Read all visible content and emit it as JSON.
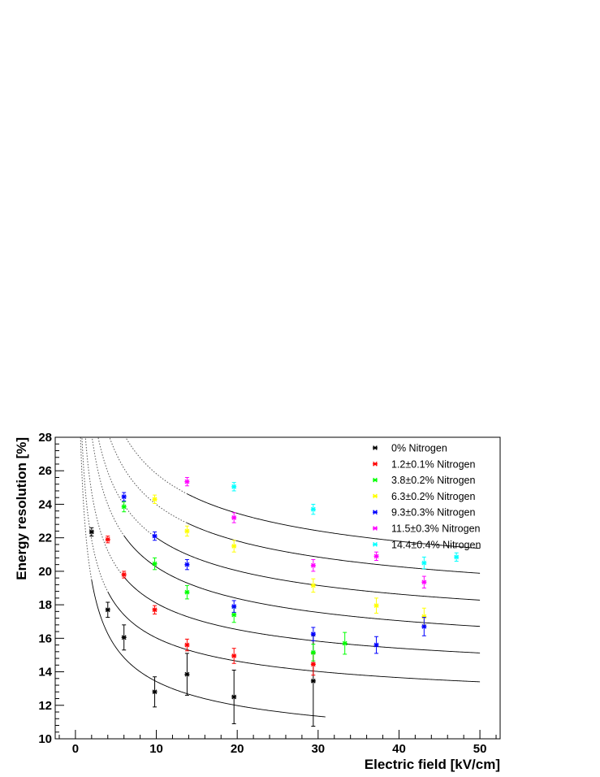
{
  "chart_data": {
    "type": "scatter",
    "xlabel": "Electric field [kV/cm]",
    "ylabel": "Energy resolution [%]",
    "xlim": [
      -2.5,
      52.5
    ],
    "ylim": [
      10,
      28
    ],
    "x_ticks": [
      0,
      10,
      20,
      30,
      40,
      50
    ],
    "y_ticks": [
      10,
      12,
      14,
      16,
      18,
      20,
      22,
      24,
      26,
      28
    ],
    "x_tick_labels": [
      "0",
      "10",
      "20",
      "30",
      "40",
      "50"
    ],
    "y_tick_labels": [
      "10",
      "12",
      "14",
      "16",
      "18",
      "20",
      "22",
      "24",
      "26",
      "28"
    ],
    "grid": false,
    "legend_position": "top-right",
    "series": [
      {
        "name": "0% Nitrogen",
        "color": "#000000",
        "points": [
          {
            "x": 2,
            "y": 22.35,
            "err": 0.25
          },
          {
            "x": 4,
            "y": 17.7,
            "err": 0.45
          },
          {
            "x": 6,
            "y": 16.05,
            "err": 0.75
          },
          {
            "x": 9.8,
            "y": 12.8,
            "err": 0.9
          },
          {
            "x": 13.8,
            "y": 13.85,
            "err": 1.25
          },
          {
            "x": 19.6,
            "y": 12.5,
            "err": 1.6
          },
          {
            "x": 29.4,
            "y": 13.45,
            "err": 2.7
          }
        ]
      },
      {
        "name": "1.2±0.1% Nitrogen",
        "color": "#ff0000",
        "points": [
          {
            "x": 4,
            "y": 21.9,
            "err": 0.2
          },
          {
            "x": 6,
            "y": 19.8,
            "err": 0.2
          },
          {
            "x": 9.8,
            "y": 17.7,
            "err": 0.25
          },
          {
            "x": 13.8,
            "y": 15.6,
            "err": 0.35
          },
          {
            "x": 19.6,
            "y": 14.95,
            "err": 0.45
          },
          {
            "x": 29.4,
            "y": 14.45,
            "err": 0.65
          }
        ]
      },
      {
        "name": "3.8±0.2% Nitrogen",
        "color": "#00ff00",
        "points": [
          {
            "x": 6,
            "y": 23.85,
            "err": 0.3
          },
          {
            "x": 9.8,
            "y": 20.45,
            "err": 0.35
          },
          {
            "x": 13.8,
            "y": 18.75,
            "err": 0.4
          },
          {
            "x": 19.6,
            "y": 17.4,
            "err": 0.45
          },
          {
            "x": 29.4,
            "y": 15.15,
            "err": 0.5
          },
          {
            "x": 33.3,
            "y": 15.7,
            "err": 0.65
          }
        ]
      },
      {
        "name": "6.3±0.2% Nitrogen",
        "color": "#ffff00",
        "points": [
          {
            "x": 9.8,
            "y": 24.3,
            "err": 0.25
          },
          {
            "x": 13.8,
            "y": 22.4,
            "err": 0.3
          },
          {
            "x": 19.6,
            "y": 21.5,
            "err": 0.35
          },
          {
            "x": 29.4,
            "y": 19.15,
            "err": 0.4
          },
          {
            "x": 37.2,
            "y": 17.95,
            "err": 0.45
          },
          {
            "x": 43.1,
            "y": 17.3,
            "err": 0.5
          }
        ]
      },
      {
        "name": "9.3±0.3% Nitrogen",
        "color": "#0000ff",
        "points": [
          {
            "x": 6,
            "y": 24.45,
            "err": 0.25
          },
          {
            "x": 9.8,
            "y": 22.1,
            "err": 0.25
          },
          {
            "x": 13.8,
            "y": 20.4,
            "err": 0.3
          },
          {
            "x": 19.6,
            "y": 17.9,
            "err": 0.35
          },
          {
            "x": 29.4,
            "y": 16.25,
            "err": 0.4
          },
          {
            "x": 37.2,
            "y": 15.6,
            "err": 0.5
          },
          {
            "x": 43.1,
            "y": 16.7,
            "err": 0.55
          }
        ]
      },
      {
        "name": "11.5±0.3% Nitrogen",
        "color": "#ff00ff",
        "points": [
          {
            "x": 13.8,
            "y": 25.35,
            "err": 0.25
          },
          {
            "x": 19.6,
            "y": 23.2,
            "err": 0.3
          },
          {
            "x": 29.4,
            "y": 20.35,
            "err": 0.35
          },
          {
            "x": 37.2,
            "y": 20.9,
            "err": 0.25
          },
          {
            "x": 43.1,
            "y": 19.35,
            "err": 0.35
          }
        ]
      },
      {
        "name": "14.4±0.4% Nitrogen",
        "color": "#00ffff",
        "points": [
          {
            "x": 19.6,
            "y": 25.05,
            "err": 0.25
          },
          {
            "x": 29.4,
            "y": 23.7,
            "err": 0.3
          },
          {
            "x": 43.1,
            "y": 20.5,
            "err": 0.35
          },
          {
            "x": 47.1,
            "y": 20.85,
            "err": 0.25
          }
        ]
      }
    ],
    "fit_curves": [
      {
        "a": 8.52,
        "b": 15.5,
        "x_dotted_end": 2,
        "x_end": 30.9
      },
      {
        "a": 11.28,
        "b": 15.0,
        "x_dotted_end": 4,
        "x_end": 50
      },
      {
        "a": 12.72,
        "b": 17.0,
        "x_dotted_end": 6,
        "x_end": 50
      },
      {
        "a": 13.84,
        "b": 20.3,
        "x_dotted_end": 6,
        "x_end": 50
      },
      {
        "a": 15.26,
        "b": 21.34,
        "x_dotted_end": 9.8,
        "x_end": 50
      },
      {
        "a": 16.56,
        "b": 23.49,
        "x_dotted_end": 13.8,
        "x_end": 50
      },
      {
        "a": 17.76,
        "b": 25.5,
        "x_dotted_end": 13.8,
        "x_end": 50
      }
    ]
  }
}
